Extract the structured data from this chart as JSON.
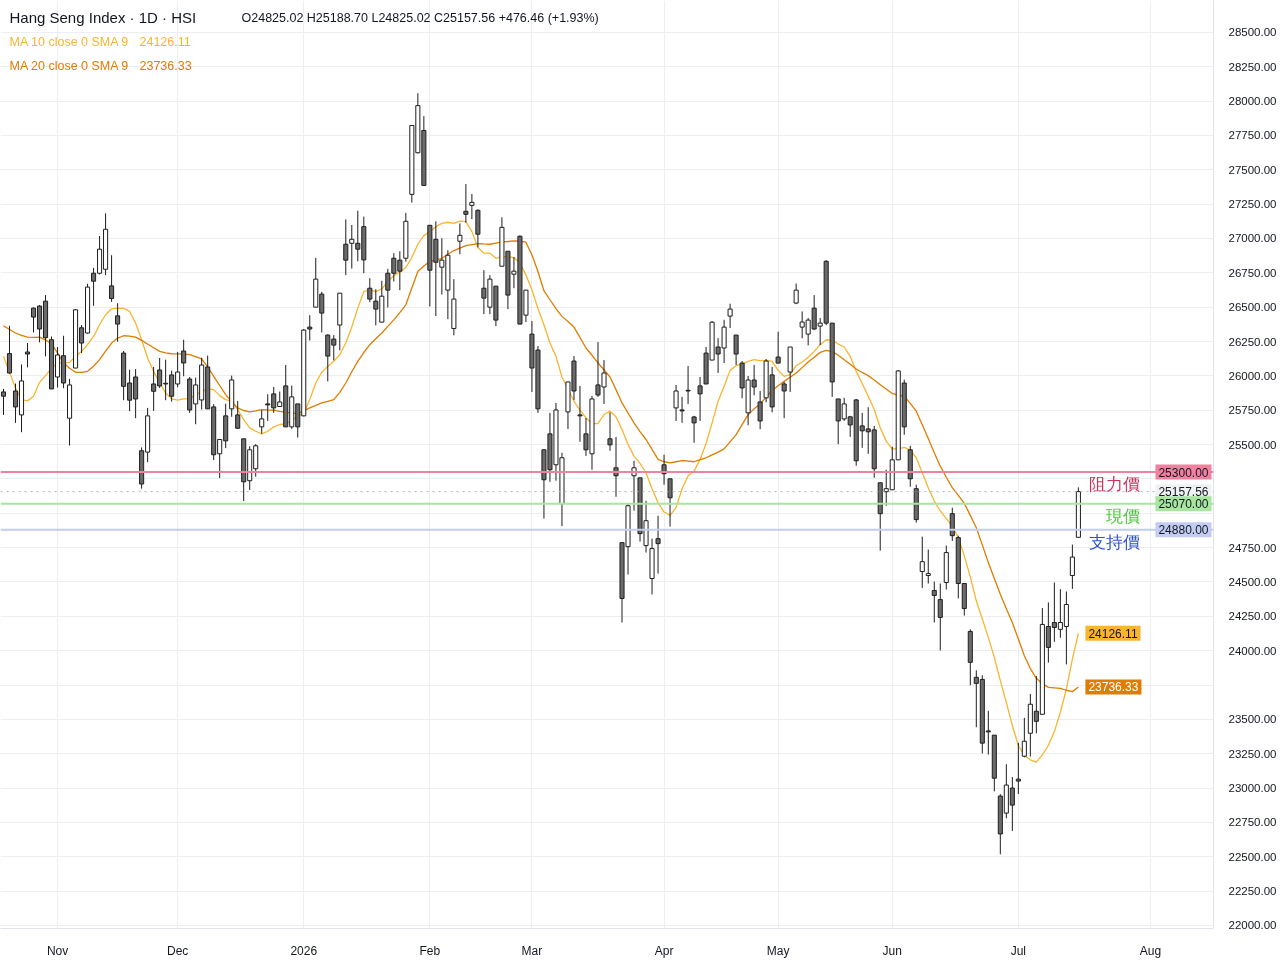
{
  "chart_data": {
    "type": "candlestick",
    "title": "Hang Seng Index · 1D · HSI",
    "subtitle": "O24825.02 H25188.70 L24825.02 C25157.56 +476.46 (+1.93%)",
    "categories": [
      null,
      null,
      null,
      null,
      null,
      null,
      null,
      null,
      null,
      "Nov",
      null,
      null,
      null,
      null,
      null,
      null,
      null,
      null,
      null,
      null,
      null,
      null,
      null,
      null,
      null,
      null,
      null,
      null,
      null,
      "Dec",
      null,
      null,
      null,
      null,
      null,
      null,
      null,
      null,
      null,
      null,
      null,
      null,
      null,
      null,
      null,
      null,
      null,
      null,
      null,
      null,
      "2026",
      null,
      null,
      null,
      null,
      null,
      null,
      null,
      null,
      null,
      null,
      null,
      null,
      null,
      null,
      null,
      null,
      null,
      null,
      null,
      null,
      "Feb",
      null,
      null,
      null,
      null,
      null,
      null,
      null,
      null,
      null,
      null,
      null,
      null,
      null,
      null,
      null,
      null,
      "Mar",
      null,
      null,
      null,
      null,
      null,
      null,
      null,
      null,
      null,
      null,
      null,
      null,
      null,
      null,
      null,
      null,
      null,
      null,
      null,
      null,
      null,
      "Apr",
      null,
      null,
      null,
      null,
      null,
      null,
      null,
      null,
      null,
      null,
      null,
      null,
      null,
      null,
      null,
      null,
      null,
      null,
      "May",
      null,
      null,
      null,
      null,
      null,
      null,
      null,
      null,
      null,
      null,
      null,
      null,
      null,
      null,
      null,
      null,
      null,
      null,
      "Jun",
      null,
      null,
      null,
      null,
      null,
      null,
      null,
      null,
      null,
      null,
      null,
      null,
      null,
      null,
      null,
      null,
      null,
      null,
      null,
      null,
      "Jul",
      null,
      null,
      null,
      null,
      null,
      null,
      null,
      null,
      null,
      null,
      null,
      null,
      null,
      null,
      null,
      null,
      null,
      null,
      null,
      null,
      null,
      "Aug",
      null,
      null,
      null,
      null,
      null,
      null,
      null,
      null,
      null,
      null
    ],
    "ohlc": [
      [
        25883,
        25905,
        25716,
        25852
      ],
      [
        26162,
        26365,
        26016,
        26021
      ],
      [
        25890,
        25944,
        25658,
        25774
      ],
      [
        25716,
        26084,
        25590,
        25963
      ],
      [
        26174,
        26239,
        26062,
        26159
      ],
      [
        26493,
        26498,
        26316,
        26428
      ],
      [
        26508,
        26515,
        26244,
        26341
      ],
      [
        26544,
        26588,
        26142,
        26278
      ],
      [
        26263,
        26287,
        25905,
        25905
      ],
      [
        25992,
        26210,
        25915,
        26152
      ],
      [
        26147,
        26292,
        25910,
        25948
      ],
      [
        25692,
        25978,
        25493,
        25934
      ],
      [
        26057,
        26486,
        26057,
        26481
      ],
      [
        26350,
        26370,
        26166,
        26239
      ],
      [
        26312,
        26670,
        26307,
        26646
      ],
      [
        26747,
        26786,
        26510,
        26689
      ],
      [
        26747,
        27018,
        26738,
        26922
      ],
      [
        26776,
        27183,
        26733,
        27067
      ],
      [
        26655,
        26878,
        26539,
        26563
      ],
      [
        26437,
        26529,
        26249,
        26377
      ],
      [
        26166,
        26181,
        25823,
        25924
      ],
      [
        25948,
        26045,
        25743,
        25823
      ],
      [
        25992,
        26050,
        25692,
        25832
      ],
      [
        25455,
        25479,
        25179,
        25213
      ],
      [
        25445,
        25767,
        25372,
        25709
      ],
      [
        25941,
        26065,
        25745,
        25888
      ],
      [
        26043,
        26130,
        25912,
        25927
      ],
      [
        25946,
        26118,
        25823,
        25941
      ],
      [
        26007,
        26038,
        25813,
        25852
      ],
      [
        25941,
        26174,
        25917,
        26028
      ],
      [
        26181,
        26263,
        25997,
        26094
      ],
      [
        25977,
        25992,
        25731,
        25752
      ],
      [
        25796,
        25987,
        25648,
        25934
      ],
      [
        25825,
        26132,
        25755,
        26079
      ],
      [
        26065,
        26147,
        25760,
        25760
      ],
      [
        25774,
        25794,
        25387,
        25426
      ],
      [
        25433,
        25537,
        25256,
        25537
      ],
      [
        25709,
        25798,
        25474,
        25527
      ],
      [
        25760,
        26002,
        25702,
        25970
      ],
      [
        25716,
        25818,
        25614,
        25619
      ],
      [
        25542,
        25542,
        25089,
        25229
      ],
      [
        25237,
        25488,
        25169,
        25462
      ],
      [
        25324,
        25503,
        25266,
        25491
      ],
      [
        25629,
        25750,
        25580,
        25687
      ],
      [
        25796,
        25866,
        25672,
        25789
      ],
      [
        25869,
        25919,
        25731,
        25767
      ],
      [
        25777,
        25886,
        25774,
        25810
      ],
      [
        25927,
        26079,
        25629,
        25629
      ],
      [
        25629,
        25929,
        25614,
        25847
      ],
      [
        25796,
        25796,
        25551,
        25629
      ],
      [
        25709,
        26341,
        25706,
        26333
      ],
      [
        26355,
        26442,
        26258,
        26341
      ],
      [
        26500,
        26859,
        26500,
        26704
      ],
      [
        26595,
        26612,
        26316,
        26457
      ],
      [
        26297,
        26302,
        25960,
        26144
      ],
      [
        26268,
        26297,
        26113,
        26224
      ],
      [
        26370,
        26602,
        26186,
        26602
      ],
      [
        26958,
        27139,
        26733,
        26842
      ],
      [
        26965,
        27098,
        26781,
        26994
      ],
      [
        26965,
        27202,
        26834,
        26922
      ],
      [
        27086,
        27159,
        26747,
        26844
      ],
      [
        26638,
        26711,
        26537,
        26559
      ],
      [
        26544,
        26631,
        26367,
        26486
      ],
      [
        26391,
        26692,
        26391,
        26580
      ],
      [
        26747,
        26779,
        26498,
        26624
      ],
      [
        26856,
        26893,
        26687,
        26747
      ],
      [
        26842,
        26907,
        26624,
        26762
      ],
      [
        26856,
        27186,
        26832,
        27125
      ],
      [
        27321,
        27822,
        27261,
        27822
      ],
      [
        27624,
        28057,
        27619,
        27967
      ],
      [
        27786,
        27890,
        27386,
        27386
      ],
      [
        27096,
        27096,
        26505,
        26769
      ],
      [
        26994,
        27125,
        26435,
        26827
      ],
      [
        26791,
        27002,
        26592,
        26842
      ],
      [
        26624,
        26914,
        26413,
        26878
      ],
      [
        26345,
        26704,
        26295,
        26559
      ],
      [
        26980,
        27110,
        26885,
        27023
      ],
      [
        27198,
        27396,
        27115,
        27176
      ],
      [
        27241,
        27324,
        27140,
        27263
      ],
      [
        27205,
        27212,
        26936,
        27031
      ],
      [
        26638,
        26769,
        26450,
        26566
      ],
      [
        26500,
        26733,
        26450,
        26704
      ],
      [
        26653,
        26653,
        26362,
        26406
      ],
      [
        26798,
        27154,
        26798,
        27081
      ],
      [
        26907,
        26907,
        26486,
        26588
      ],
      [
        26740,
        26864,
        26638,
        26762
      ],
      [
        27016,
        27023,
        26377,
        26377
      ],
      [
        26442,
        26624,
        26391,
        26624
      ],
      [
        26304,
        26399,
        25883,
        26057
      ],
      [
        26188,
        26217,
        25731,
        25760
      ],
      [
        25462,
        25462,
        24961,
        25244
      ],
      [
        25578,
        25731,
        25229,
        25317
      ],
      [
        25353,
        25803,
        25237,
        25752
      ],
      [
        25070,
        25440,
        24907,
        25404
      ],
      [
        25738,
        25956,
        25614,
        25956
      ],
      [
        26108,
        26144,
        25825,
        25890
      ],
      [
        25716,
        25927,
        25520,
        25709
      ],
      [
        25578,
        25694,
        25418,
        25462
      ],
      [
        25433,
        25854,
        25317,
        25832
      ],
      [
        25934,
        26246,
        25847,
        25861
      ],
      [
        25919,
        26115,
        25796,
        26021
      ],
      [
        25542,
        25731,
        25455,
        25498
      ],
      [
        25331,
        25556,
        25120,
        25273
      ],
      [
        24786,
        24786,
        24205,
        24380
      ],
      [
        24757,
        25070,
        24554,
        25055
      ],
      [
        25273,
        25382,
        25019,
        25331
      ],
      [
        25258,
        25258,
        24794,
        24852
      ],
      [
        24765,
        25091,
        24714,
        24946
      ],
      [
        24525,
        24815,
        24409,
        24743
      ],
      [
        24815,
        24982,
        24561,
        24779
      ],
      [
        25353,
        25426,
        25208,
        25288
      ],
      [
        25251,
        25251,
        24903,
        25113
      ],
      [
        25767,
        25934,
        25672,
        25890
      ],
      [
        25752,
        25847,
        25658,
        25745
      ],
      [
        25895,
        26072,
        25796,
        25890
      ],
      [
        25701,
        25709,
        25513,
        25658
      ],
      [
        25927,
        25992,
        25672,
        25869
      ],
      [
        26166,
        26210,
        25941,
        25941
      ],
      [
        26115,
        26399,
        26115,
        26391
      ],
      [
        26210,
        26275,
        26021,
        26159
      ],
      [
        26203,
        26408,
        26094,
        26355
      ],
      [
        26435,
        26525,
        26348,
        26486
      ],
      [
        26297,
        26297,
        26079,
        26159
      ],
      [
        26093,
        26108,
        25837,
        25912
      ],
      [
        25731,
        25999,
        25641,
        25970
      ],
      [
        25970,
        26079,
        25859,
        25919
      ],
      [
        25810,
        25890,
        25612,
        25672
      ],
      [
        25840,
        26123,
        25808,
        26108
      ],
      [
        26007,
        26065,
        25735,
        25774
      ],
      [
        26137,
        26321,
        26093,
        26093
      ],
      [
        25941,
        25956,
        25692,
        25890
      ],
      [
        26028,
        26210,
        25883,
        26210
      ],
      [
        26530,
        26672,
        26522,
        26624
      ],
      [
        26355,
        26469,
        26273,
        26392
      ],
      [
        26304,
        26421,
        26222,
        26406
      ],
      [
        26493,
        26588,
        26333,
        26341
      ],
      [
        26362,
        26421,
        26224,
        26384
      ],
      [
        26834,
        26842,
        26370,
        26384
      ],
      [
        26384,
        26384,
        25847,
        25956
      ],
      [
        25832,
        25832,
        25503,
        25672
      ],
      [
        25687,
        25840,
        25672,
        25796
      ],
      [
        25702,
        25709,
        25556,
        25643
      ],
      [
        25825,
        25832,
        25346,
        25382
      ],
      [
        25636,
        25731,
        25476,
        25600
      ],
      [
        25614,
        25772,
        25433,
        25593
      ],
      [
        25607,
        25636,
        25259,
        25324
      ],
      [
        25222,
        25222,
        24728,
        24997
      ],
      [
        25157,
        25317,
        25055,
        25179
      ],
      [
        25171,
        25484,
        25171,
        25389
      ],
      [
        25389,
        26043,
        25389,
        26036
      ],
      [
        25948,
        25973,
        25571,
        25629
      ],
      [
        25462,
        25491,
        25193,
        25251
      ],
      [
        25179,
        25208,
        24932,
        24954
      ],
      [
        24576,
        24830,
        24457,
        24648
      ],
      [
        24547,
        24736,
        24489,
        24561
      ],
      [
        24438,
        24503,
        24205,
        24402
      ],
      [
        24372,
        24489,
        24002,
        24242
      ],
      [
        24496,
        24765,
        24445,
        24714
      ],
      [
        24997,
        25041,
        24799,
        24837
      ],
      [
        24823,
        24837,
        24380,
        24489
      ],
      [
        24489,
        24489,
        24256,
        24307
      ],
      [
        24140,
        24155,
        23748,
        23915
      ],
      [
        23806,
        23857,
        23443,
        23762
      ],
      [
        23791,
        23821,
        23252,
        23327
      ],
      [
        23416,
        23562,
        23244,
        23409
      ],
      [
        23385,
        23385,
        22976,
        23072
      ],
      [
        22942,
        22956,
        22518,
        22666
      ],
      [
        22818,
        23174,
        22780,
        23022
      ],
      [
        23000,
        23080,
        22688,
        22876
      ],
      [
        23065,
        23329,
        22956,
        23051
      ],
      [
        23232,
        23511,
        23223,
        23341
      ],
      [
        23399,
        23685,
        23230,
        23610
      ],
      [
        23559,
        23816,
        23399,
        23486
      ],
      [
        23537,
        24310,
        23537,
        24191
      ],
      [
        24176,
        24351,
        23913,
        24024
      ],
      [
        24205,
        24496,
        24065,
        24169
      ],
      [
        24155,
        24448,
        24094,
        24205
      ],
      [
        24176,
        24431,
        23900,
        24336
      ],
      [
        24547,
        24772,
        24450,
        24681.1
      ],
      [
        24825.02,
        25188.7,
        24825.02,
        25157.56
      ],
      null,
      null,
      null,
      null,
      null,
      null,
      null,
      null,
      null,
      null,
      null,
      null,
      null,
      null,
      null,
      null,
      null,
      null,
      null,
      null,
      null,
      null
    ],
    "color": "#1e1e1e",
    "colors": [
      "#6b6b6b",
      "#6b6b6b",
      "#6b6b6b",
      "#ffffff",
      "#6b6b6b",
      "#6b6b6b",
      "#6b6b6b",
      "#6b6b6b",
      "#6b6b6b",
      "#ffffff",
      "#6b6b6b",
      "#ffffff",
      "#ffffff",
      "#6b6b6b",
      "#ffffff",
      "#6b6b6b",
      "#ffffff",
      "#ffffff",
      "#6b6b6b",
      "#6b6b6b",
      "#6b6b6b",
      "#6b6b6b",
      "#6b6b6b",
      "#6b6b6b",
      "#ffffff",
      "#6b6b6b",
      "#6b6b6b",
      "#6b6b6b",
      "#6b6b6b",
      "#ffffff",
      "#6b6b6b",
      "#6b6b6b",
      "#ffffff",
      "#ffffff",
      "#6b6b6b",
      "#6b6b6b",
      "#ffffff",
      "#6b6b6b",
      "#ffffff",
      "#6b6b6b",
      "#6b6b6b",
      "#ffffff",
      "#ffffff",
      "#ffffff",
      "#6b6b6b",
      "#6b6b6b",
      "#ffffff",
      "#6b6b6b",
      "#ffffff",
      "#6b6b6b",
      "#ffffff",
      "#6b6b6b",
      "#ffffff",
      "#6b6b6b",
      "#6b6b6b",
      "#6b6b6b",
      "#ffffff",
      "#6b6b6b",
      "#ffffff",
      "#6b6b6b",
      "#6b6b6b",
      "#6b6b6b",
      "#6b6b6b",
      "#ffffff",
      "#6b6b6b",
      "#6b6b6b",
      "#6b6b6b",
      "#ffffff",
      "#ffffff",
      "#ffffff",
      "#6b6b6b",
      "#6b6b6b",
      "#6b6b6b",
      "#ffffff",
      "#ffffff",
      "#ffffff",
      "#ffffff",
      "#6b6b6b",
      "#ffffff",
      "#6b6b6b",
      "#6b6b6b",
      "#ffffff",
      "#6b6b6b",
      "#ffffff",
      "#6b6b6b",
      "#ffffff",
      "#6b6b6b",
      "#ffffff",
      "#6b6b6b",
      "#6b6b6b",
      "#6b6b6b",
      "#6b6b6b",
      "#ffffff",
      "#ffffff",
      "#ffffff",
      "#6b6b6b",
      "#6b6b6b",
      "#6b6b6b",
      "#ffffff",
      "#6b6b6b",
      "#ffffff",
      "#6b6b6b",
      "#6b6b6b",
      "#6b6b6b",
      "#ffffff",
      "#ffffff",
      "#6b6b6b",
      "#ffffff",
      "#ffffff",
      "#6b6b6b",
      "#6b6b6b",
      "#6b6b6b",
      "#ffffff",
      "#6b6b6b",
      "#6b6b6b",
      "#6b6b6b",
      "#6b6b6b",
      "#6b6b6b",
      "#ffffff",
      "#6b6b6b",
      "#ffffff",
      "#ffffff",
      "#6b6b6b",
      "#6b6b6b",
      "#ffffff",
      "#6b6b6b",
      "#6b6b6b",
      "#ffffff",
      "#6b6b6b",
      "#6b6b6b",
      "#6b6b6b",
      "#ffffff",
      "#ffffff",
      "#ffffff",
      "#ffffff",
      "#6b6b6b",
      "#ffffff",
      "#6b6b6b",
      "#6b6b6b",
      "#6b6b6b",
      "#ffffff",
      "#6b6b6b",
      "#6b6b6b",
      "#6b6b6b",
      "#6b6b6b",
      "#6b6b6b",
      "#6b6b6b",
      "#ffffff",
      "#ffffff",
      "#ffffff",
      "#6b6b6b",
      "#6b6b6b",
      "#6b6b6b",
      "#ffffff",
      "#ffffff",
      "#6b6b6b",
      "#6b6b6b",
      "#ffffff",
      "#6b6b6b",
      "#6b6b6b",
      "#6b6b6b",
      "#6b6b6b",
      "#6b6b6b",
      "#6b6b6b",
      "#6b6b6b",
      "#6b6b6b",
      "#6b6b6b",
      "#ffffff",
      "#6b6b6b",
      "#6b6b6b",
      "#ffffff",
      "#ffffff",
      "#6b6b6b",
      "#ffffff",
      "#6b6b6b",
      "#6b6b6b",
      "#ffffff",
      "#ffffff",
      "#ffffff",
      "#ffffff",
      null,
      null,
      null,
      null,
      null,
      null,
      null,
      null,
      null,
      null,
      null,
      null,
      null,
      null,
      null,
      null,
      null,
      null,
      null,
      null,
      null,
      null
    ],
    "series": [
      {
        "name": "MA 10 close 0 SMA 9",
        "type": "line",
        "color": "#f7b530",
        "values": [
          26142,
          null,
          25912,
          25827,
          25818,
          25852,
          25953,
          26002,
          26057,
          26094,
          26094,
          26099,
          26142,
          26178,
          26227,
          26287,
          26372,
          26445,
          26488,
          26493,
          26491,
          26469,
          26384,
          26263,
          26130,
          26033,
          25948,
          25876,
          25832,
          25823,
          25832,
          25832,
          25864,
          null,
          25905,
          25900,
          25856,
          25827,
          25815,
          25755,
          25682,
          25622,
          25597,
          25578,
          25597,
          25629,
          25646,
          25651,
          null,
          null,
          25731,
          25827,
          25948,
          26026,
          26069,
          26106,
          26154,
          26239,
          26355,
          26493,
          26614,
          26626,
          26614,
          26633,
          26687,
          26731,
          26755,
          26789,
          26861,
          26958,
          27021,
          27050,
          27086,
          27110,
          27118,
          27110,
          27127,
          27123,
          27050,
          26934,
          26893,
          26893,
          26856,
          26868,
          26868,
          26861,
          26820,
          26735,
          26626,
          26490,
          26372,
          26239,
          26142,
          25992,
          null,
          25815,
          25750,
          25694,
          25653,
          25653,
          25719,
          25743,
          25702,
          25609,
          25501,
          25416,
          25363,
          25295,
          25179,
          25077,
          25009,
          24985,
          25041,
          25179,
          25271,
          25307,
          25392,
          25508,
          25658,
          25815,
          25924,
          26040,
          26074,
          26086,
          26106,
          26118,
          26111,
          26113,
          26106,
          26040,
          25997,
          26009,
          26074,
          26101,
          26135,
          26178,
          26227,
          26263,
          26258,
          26232,
          26210,
          26142,
          26033,
          25944,
          25852,
          25755,
          25622,
          25525,
          25469,
          25469,
          25480,
          25459,
          25404,
          25295,
          25186,
          25089,
          25017,
          24961,
          24907,
          24823,
          24690,
          24537,
          24363,
          24230,
          24097,
          23951,
          23782,
          23624,
          23455,
          23310,
          23237,
          23206,
          23189,
          23242,
          23310,
          23411,
          23552,
          23721,
          23939,
          24126.11,
          null,
          null,
          null,
          null,
          null,
          null,
          null,
          null,
          null,
          null,
          null,
          null,
          null,
          null,
          null,
          null,
          null,
          null,
          null,
          null,
          null,
          null
        ],
        "value_labels": [
          null,
          null,
          null,
          null,
          null,
          null,
          null,
          null,
          null,
          null,
          null,
          null,
          null,
          null,
          null,
          null,
          null,
          null,
          null,
          null,
          null,
          null,
          null,
          null,
          null,
          null,
          null,
          null,
          null,
          null,
          null,
          null,
          null,
          null,
          null,
          null,
          null,
          null,
          null,
          null,
          null,
          null,
          null,
          null,
          null,
          null,
          null,
          null,
          null,
          null,
          null,
          null,
          null,
          null,
          null,
          null,
          null,
          null,
          null,
          null,
          null,
          null,
          null,
          null,
          null,
          null,
          null,
          null,
          null,
          null,
          null,
          null,
          null,
          null,
          null,
          null,
          null,
          null,
          null,
          null,
          null,
          null,
          null,
          null,
          null,
          null,
          null,
          null,
          null,
          null,
          null,
          null,
          null,
          null,
          null,
          null,
          null,
          null,
          null,
          null,
          null,
          null,
          null,
          null,
          null,
          null,
          null,
          null,
          null,
          null,
          null,
          null,
          null,
          null,
          null,
          null,
          null,
          null,
          null,
          null,
          null,
          null,
          null,
          null,
          null,
          null,
          null,
          null,
          null,
          null,
          null,
          null,
          null,
          null,
          null,
          null,
          null,
          null,
          null,
          null,
          null,
          null,
          null,
          null,
          null,
          null,
          null,
          null,
          null,
          null,
          null,
          null,
          null,
          null,
          null,
          null,
          null,
          null,
          null,
          null,
          null,
          null,
          null,
          null,
          null,
          null,
          null,
          null,
          null,
          null,
          null,
          null,
          null,
          null,
          null,
          null,
          null,
          null,
          null,
          "24126.11",
          null,
          null,
          null,
          null,
          null,
          null,
          null,
          null,
          null,
          null,
          null,
          null,
          null,
          null,
          null,
          null,
          null,
          null,
          null,
          null,
          null,
          null
        ]
      },
      {
        "name": "MA 20 close 0 SMA 9",
        "type": "line",
        "color": "#e07c00",
        "values": [
          26365,
          26338,
          26312,
          26295,
          26282,
          26280,
          26282,
          26262,
          26234,
          26165,
          26094,
          26055,
          26026,
          26025,
          26033,
          26070,
          26118,
          26180,
          26239,
          26275,
          26292,
          26290,
          26282,
          26258,
          26232,
          26205,
          26178,
          26168,
          26161,
          26160,
          26159,
          26154,
          26140,
          26123,
          26065,
          25997,
          25930,
          25864,
          25812,
          25767,
          25748,
          25738,
          25745,
          25755,
          25752,
          25750,
          25742,
          25735,
          25730,
          25726,
          25745,
          25767,
          25785,
          25803,
          25815,
          25827,
          25880,
          25948,
          26030,
          26106,
          26170,
          26227,
          26270,
          26312,
          26360,
          26408,
          26460,
          26517,
          26640,
          26759,
          26800,
          26832,
          26845,
          26856,
          26885,
          26912,
          26930,
          26948,
          26956,
          26963,
          26960,
          26958,
          26966,
          26975,
          26978,
          26982,
          26980,
          26973,
          26880,
          26760,
          26620,
          26554,
          26490,
          26433,
          26395,
          26355,
          26280,
          26203,
          26150,
          26094,
          26045,
          25992,
          25900,
          25803,
          25730,
          25658,
          25595,
          25537,
          25465,
          25392,
          25375,
          25367,
          25375,
          25384,
          25380,
          25375,
          25390,
          25404,
          25425,
          25445,
          25469,
          25520,
          25573,
          25645,
          25718,
          25760,
          25796,
          25845,
          25893,
          25928,
          25960,
          25990,
          26021,
          26060,
          26101,
          26136,
          26171,
          26186,
          26178,
          26150,
          26118,
          26085,
          26050,
          26025,
          26002,
          25970,
          25936,
          25905,
          25871,
          25862,
          25850,
          25800,
          25743,
          25645,
          25544,
          25440,
          25343,
          25262,
          25186,
          25130,
          25072,
          24985,
          24895,
          24770,
          24641,
          24525,
          24411,
          24305,
          24205,
          24085,
          23963,
          23870,
          23799,
          23760,
          23733,
          23730,
          23726,
          23712,
          23702,
          23736.33,
          null,
          null,
          null,
          null,
          null,
          null,
          null,
          null,
          null,
          null,
          null,
          null,
          null,
          null,
          null,
          null,
          null,
          null,
          null,
          null,
          null,
          null
        ],
        "value_labels": [
          null,
          null,
          null,
          null,
          null,
          null,
          null,
          null,
          null,
          null,
          null,
          null,
          null,
          null,
          null,
          null,
          null,
          null,
          null,
          null,
          null,
          null,
          null,
          null,
          null,
          null,
          null,
          null,
          null,
          null,
          null,
          null,
          null,
          null,
          null,
          null,
          null,
          null,
          null,
          null,
          null,
          null,
          null,
          null,
          null,
          null,
          null,
          null,
          null,
          null,
          null,
          null,
          null,
          null,
          null,
          null,
          null,
          null,
          null,
          null,
          null,
          null,
          null,
          null,
          null,
          null,
          null,
          null,
          null,
          null,
          null,
          null,
          null,
          null,
          null,
          null,
          null,
          null,
          null,
          null,
          null,
          null,
          null,
          null,
          null,
          null,
          null,
          null,
          null,
          null,
          null,
          null,
          null,
          null,
          null,
          null,
          null,
          null,
          null,
          null,
          null,
          null,
          null,
          null,
          null,
          null,
          null,
          null,
          null,
          null,
          null,
          null,
          null,
          null,
          null,
          null,
          null,
          null,
          null,
          null,
          null,
          null,
          null,
          null,
          null,
          null,
          null,
          null,
          null,
          null,
          null,
          null,
          null,
          null,
          null,
          null,
          null,
          null,
          null,
          null,
          null,
          null,
          null,
          null,
          null,
          null,
          null,
          null,
          null,
          null,
          null,
          null,
          null,
          null,
          null,
          null,
          null,
          null,
          null,
          null,
          null,
          null,
          null,
          null,
          null,
          null,
          null,
          null,
          null,
          null,
          null,
          null,
          null,
          null,
          null,
          null,
          null,
          null,
          null,
          "23736.33",
          null,
          null,
          null,
          null,
          null,
          null,
          null,
          null,
          null,
          null,
          null,
          null,
          null,
          null,
          null,
          null,
          null,
          null,
          null,
          null,
          null,
          null
        ]
      }
    ],
    "ylim": [
      21978,
      28732
    ],
    "yticks": [
      {
        "value": 22000,
        "label": "22000.00"
      },
      {
        "value": 22250,
        "label": "22250.00"
      },
      {
        "value": 22500,
        "label": "22500.00"
      },
      {
        "value": 22750,
        "label": "22750.00"
      },
      {
        "value": 23000,
        "label": "23000.00"
      },
      {
        "value": 23250,
        "label": "23250.00"
      },
      {
        "value": 23500,
        "label": "23500.00"
      },
      {
        "value": 23750,
        "label": null
      },
      {
        "value": 24000,
        "label": "24000.00"
      },
      {
        "value": 24250,
        "label": "24250.00"
      },
      {
        "value": 24500,
        "label": "24500.00"
      },
      {
        "value": 24750,
        "label": "24750.00"
      },
      {
        "value": 25000,
        "label": null
      },
      {
        "value": 25250,
        "label": null
      },
      {
        "value": 25500,
        "label": "25500.00"
      },
      {
        "value": 25750,
        "label": "25750.00"
      },
      {
        "value": 26000,
        "label": "26000.00"
      },
      {
        "value": 26250,
        "label": "26250.00"
      },
      {
        "value": 26500,
        "label": "26500.00"
      },
      {
        "value": 26750,
        "label": "26750.00"
      },
      {
        "value": 27000,
        "label": "27000.00"
      },
      {
        "value": 27250,
        "label": "27250.00"
      },
      {
        "value": 27500,
        "label": "27500.00"
      },
      {
        "value": 27750,
        "label": "27750.00"
      },
      {
        "value": 28000,
        "label": "28000.00"
      },
      {
        "value": 28250,
        "label": "28250.00"
      },
      {
        "value": 28500,
        "label": "28500.00"
      }
    ],
    "ref_lines": [
      {
        "axis": "y",
        "value": 25300,
        "label": "阻力價",
        "color": "#f0819f"
      },
      {
        "axis": "y",
        "value": 25157.56,
        "color": "#b2b5be",
        "line_style": "dotted"
      },
      {
        "axis": "y",
        "value": 25070,
        "label": "現價",
        "color": "#a8e6a0"
      },
      {
        "axis": "y",
        "value": 24880,
        "label": "支持價",
        "color": "#c3cdf2"
      }
    ],
    "annotations": [
      {
        "text": "25300.00",
        "y": 25300
      },
      {
        "text": "25157.56",
        "y": 25157.56
      },
      {
        "text": "25070.00",
        "y": 25070
      },
      {
        "text": "24880.00",
        "y": 24880
      }
    ],
    "grid": true,
    "legend": "top left"
  }
}
